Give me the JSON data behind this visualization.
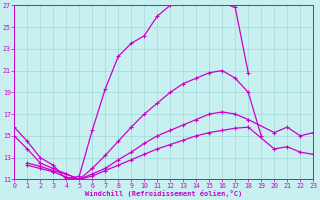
{
  "bg_color": "#c8f0f0",
  "grid_color": "#a0d8d8",
  "line_color": "#cc00cc",
  "xlim": [
    0,
    23
  ],
  "ylim": [
    11,
    27
  ],
  "yticks": [
    11,
    13,
    15,
    17,
    19,
    21,
    23,
    25,
    27
  ],
  "xticks": [
    0,
    1,
    2,
    3,
    4,
    5,
    6,
    7,
    8,
    9,
    10,
    11,
    12,
    13,
    14,
    15,
    16,
    17,
    18,
    19,
    20,
    21,
    22,
    23
  ],
  "xlabel": "Windchill (Refroidissement éolien,°C)",
  "line1_x": [
    0,
    1,
    2,
    3,
    4,
    5,
    6,
    7,
    8,
    9,
    10,
    11,
    12,
    13,
    14,
    15,
    16,
    17,
    18
  ],
  "line1_y": [
    15.8,
    14.5,
    13.0,
    12.3,
    11.0,
    11.3,
    15.5,
    19.3,
    22.3,
    23.5,
    24.2,
    26.0,
    27.0,
    27.3,
    27.5,
    27.5,
    27.2,
    26.8,
    20.8
  ],
  "line2_x": [
    0,
    1,
    2,
    3,
    4,
    5,
    6,
    7,
    8,
    9,
    10,
    11,
    12,
    13,
    14,
    15,
    16,
    17,
    18,
    19
  ],
  "line2_y": [
    15.0,
    13.8,
    12.5,
    12.0,
    11.5,
    11.0,
    12.0,
    13.2,
    14.5,
    15.8,
    17.0,
    18.0,
    19.0,
    19.8,
    20.3,
    20.8,
    21.0,
    20.3,
    19.0,
    15.0
  ],
  "line3_x": [
    1,
    2,
    3,
    4,
    5,
    6,
    7,
    8,
    9,
    10,
    11,
    12,
    13,
    14,
    15,
    16,
    17,
    18,
    20,
    21,
    22,
    23
  ],
  "line3_y": [
    12.5,
    12.2,
    11.8,
    11.5,
    11.0,
    11.5,
    12.0,
    12.8,
    13.5,
    14.3,
    15.0,
    15.5,
    16.0,
    16.5,
    17.0,
    17.2,
    17.0,
    16.5,
    15.3,
    15.8,
    15.0,
    15.3
  ],
  "line4_x": [
    1,
    2,
    3,
    4,
    5,
    6,
    7,
    8,
    9,
    10,
    11,
    12,
    13,
    14,
    15,
    16,
    17,
    18,
    20,
    21,
    22,
    23
  ],
  "line4_y": [
    12.3,
    12.0,
    11.7,
    11.2,
    11.0,
    11.3,
    11.8,
    12.3,
    12.8,
    13.3,
    13.8,
    14.2,
    14.6,
    15.0,
    15.3,
    15.5,
    15.7,
    15.8,
    13.8,
    14.0,
    13.5,
    13.3
  ]
}
